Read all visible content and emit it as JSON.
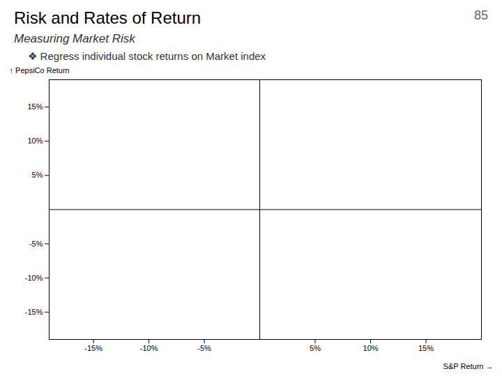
{
  "chart_data": {
    "type": "scatter",
    "title": "Risk and Rates of Return",
    "subtitle": "Measuring Market Risk",
    "annotations": [
      "85",
      "❖ Regress individual stock returns on Market index"
    ],
    "xlabel": "S&P Return",
    "ylabel": "PepsiCo Return",
    "xlim": [
      -19,
      20
    ],
    "ylim": [
      -19,
      19
    ],
    "xticks": [
      {
        "value": -15,
        "label": "-15%"
      },
      {
        "value": -10,
        "label": "-10%"
      },
      {
        "value": -5,
        "label": "-5%"
      },
      {
        "value": 5,
        "label": "5%"
      },
      {
        "value": 10,
        "label": "10%"
      },
      {
        "value": 15,
        "label": "15%"
      }
    ],
    "yticks": [
      {
        "value": -15,
        "label": "-15%"
      },
      {
        "value": -10,
        "label": "-10%"
      },
      {
        "value": -5,
        "label": "-5%"
      },
      {
        "value": 5,
        "label": "5%"
      },
      {
        "value": 10,
        "label": "10%"
      },
      {
        "value": 15,
        "label": "15%"
      }
    ],
    "grid": false
  }
}
